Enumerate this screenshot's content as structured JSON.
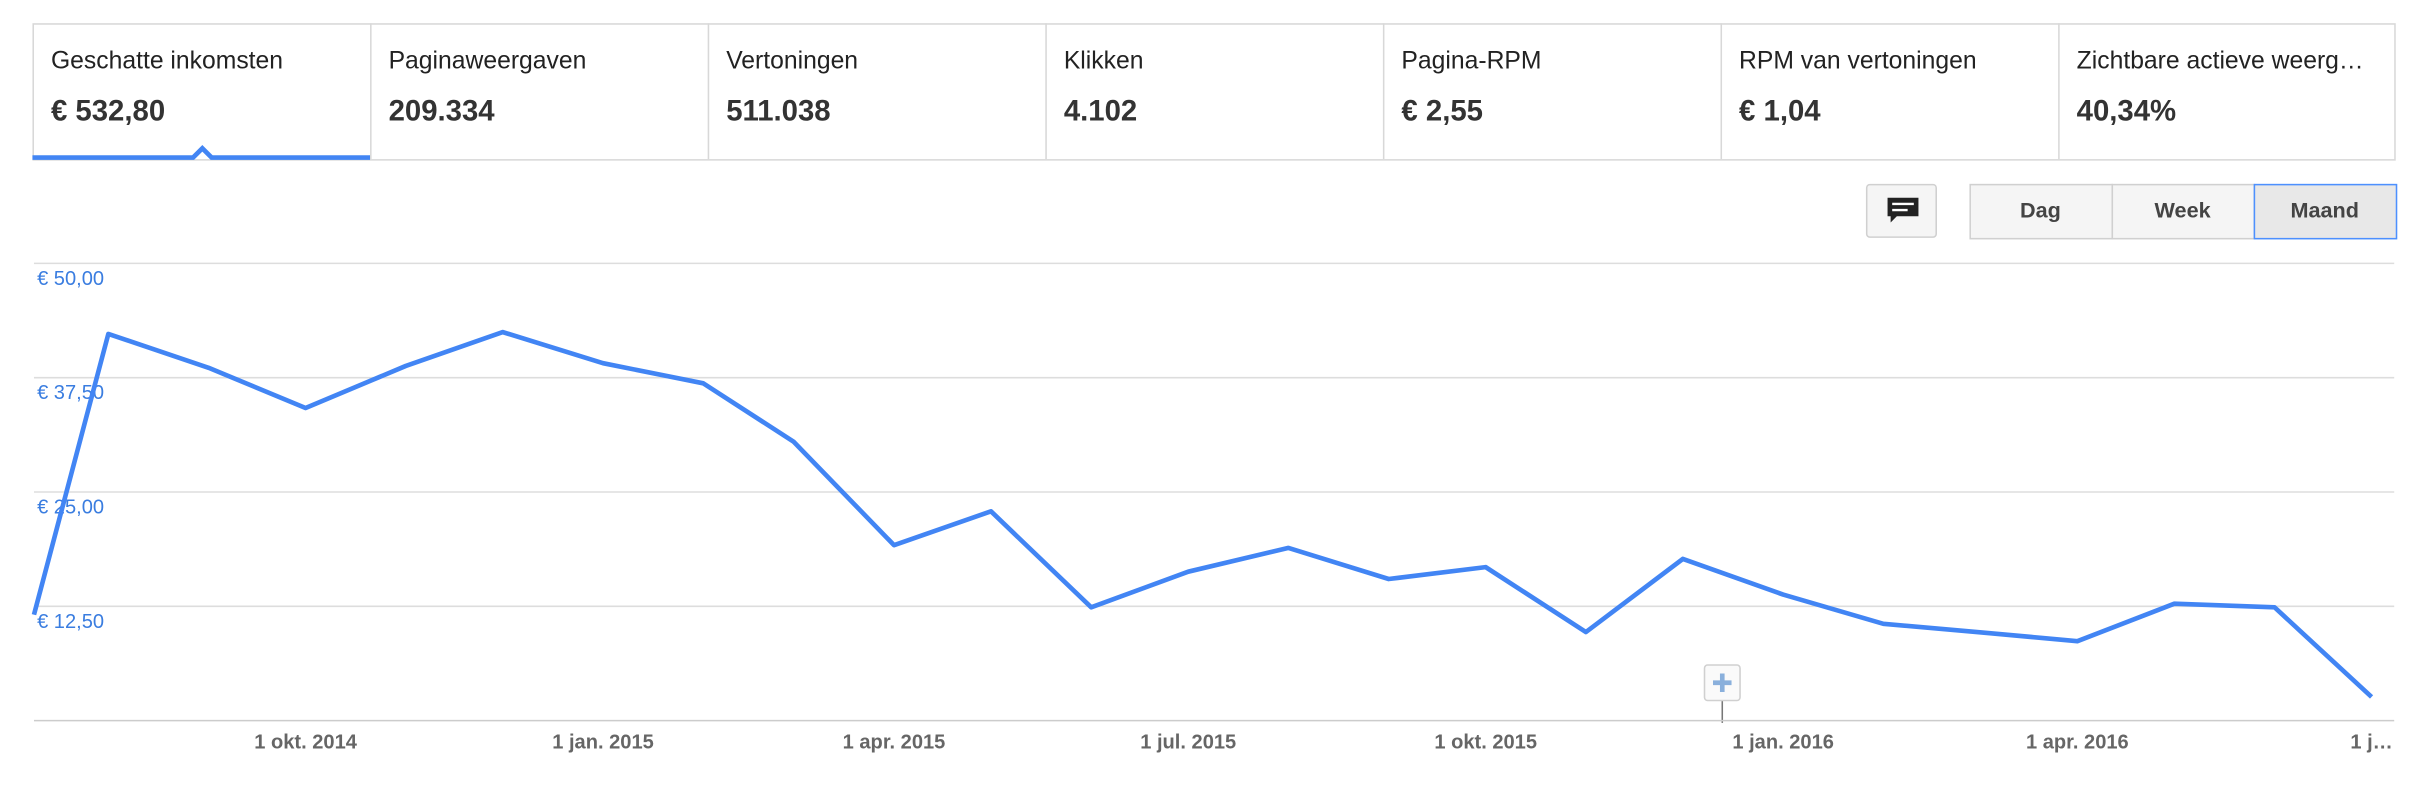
{
  "tabs": [
    {
      "label": "Geschatte inkomsten",
      "value": "€ 532,80"
    },
    {
      "label": "Paginaweergaven",
      "value": "209.334"
    },
    {
      "label": "Vertoningen",
      "value": "511.038"
    },
    {
      "label": "Klikken",
      "value": "4.102"
    },
    {
      "label": "Pagina-RPM",
      "value": "€ 2,55"
    },
    {
      "label": "RPM van vertoningen",
      "value": "€ 1,04"
    },
    {
      "label": "Zichtbare actieve weerg…",
      "value": "40,34%"
    }
  ],
  "buttons": [
    "Dag",
    "Week",
    "Maand"
  ],
  "chart_data": {
    "type": "line",
    "x": [
      "2014-07-09",
      "2014-08-01",
      "2014-09-01",
      "2014-10-01",
      "2014-11-01",
      "2014-12-01",
      "2015-01-01",
      "2015-02-01",
      "2015-03-01",
      "2015-04-01",
      "2015-05-01",
      "2015-06-01",
      "2015-07-01",
      "2015-08-01",
      "2015-09-01",
      "2015-10-01",
      "2015-11-01",
      "2015-12-01",
      "2016-01-01",
      "2016-02-01",
      "2016-03-01",
      "2016-04-01",
      "2016-05-01",
      "2016-06-01",
      "2016-07-01"
    ],
    "series": [
      {
        "name": "Geschatte inkomsten",
        "color": "#4285f4",
        "values": [
          11.5,
          42.2,
          38.5,
          34.1,
          38.7,
          42.4,
          39.0,
          36.8,
          30.4,
          19.1,
          22.8,
          12.3,
          16.2,
          18.8,
          15.4,
          16.7,
          9.6,
          17.6,
          13.7,
          10.5,
          9.6,
          8.6,
          12.7,
          12.3,
          2.5
        ]
      }
    ],
    "xlim": [
      "2014-07-09",
      "2016-07-08"
    ],
    "xticks": [
      {
        "value": "2014-10-01",
        "label": "1 okt. 2014"
      },
      {
        "value": "2015-01-01",
        "label": "1 jan. 2015"
      },
      {
        "value": "2015-04-01",
        "label": "1 apr. 2015"
      },
      {
        "value": "2015-07-01",
        "label": "1 jul. 2015"
      },
      {
        "value": "2015-10-01",
        "label": "1 okt. 2015"
      },
      {
        "value": "2016-01-01",
        "label": "1 jan. 2016"
      },
      {
        "value": "2016-04-01",
        "label": "1 apr. 2016"
      },
      {
        "value": "2016-07-01",
        "label": "1 j…"
      }
    ],
    "ylim": [
      0,
      50
    ],
    "yticks": [
      {
        "value": 12.5,
        "label": "€ 12,50"
      },
      {
        "value": 25,
        "label": "€ 25,00"
      },
      {
        "value": 37.5,
        "label": "€ 37,50"
      },
      {
        "value": 50,
        "label": "€ 50,00"
      }
    ],
    "grid": true
  }
}
